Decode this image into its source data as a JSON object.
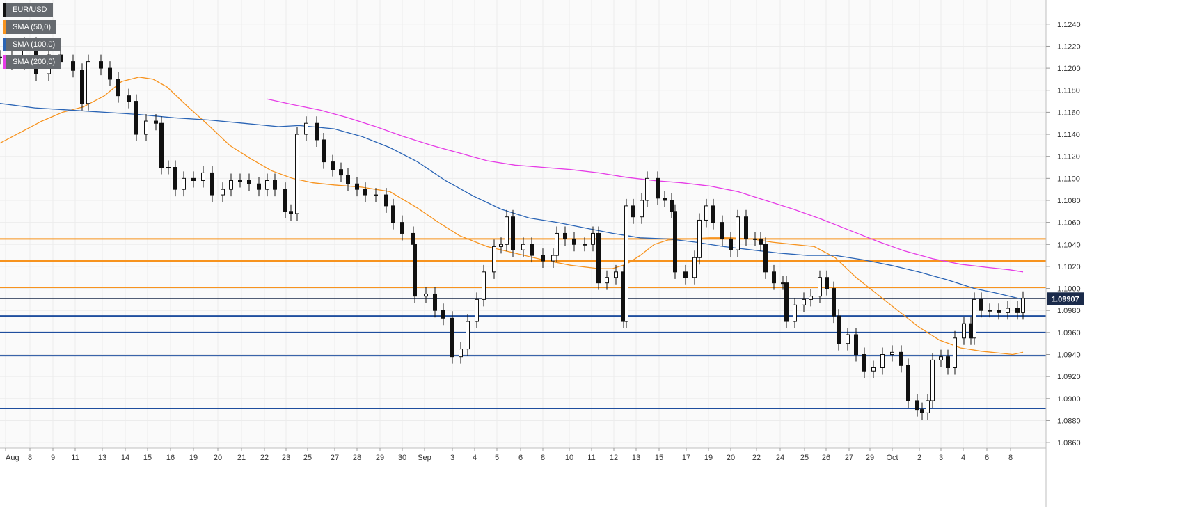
{
  "legend": {
    "items": [
      {
        "label": "EUR/USD",
        "color": "#111111"
      },
      {
        "label": "SMA (50,0)",
        "color": "#f7931e"
      },
      {
        "label": "SMA (100,0)",
        "color": "#2a64b5"
      },
      {
        "label": "SMA (200,0)",
        "color": "#e63ce6"
      }
    ]
  },
  "chart_data": {
    "type": "line",
    "title": "EUR/USD",
    "xlabel": "",
    "ylabel": "",
    "x_ticks": [
      "Aug",
      "8",
      "9",
      "11",
      "13",
      "14",
      "15",
      "16",
      "19",
      "20",
      "21",
      "22",
      "23",
      "25",
      "27",
      "28",
      "29",
      "30",
      "Sep",
      "3",
      "4",
      "5",
      "6",
      "8",
      "10",
      "11",
      "12",
      "13",
      "15",
      "17",
      "19",
      "20",
      "22",
      "24",
      "25",
      "26",
      "27",
      "29",
      "Oct",
      "2",
      "3",
      "4",
      "6",
      "8"
    ],
    "y_ticks": [
      "1.0860",
      "1.0880",
      "1.0900",
      "1.0920",
      "1.0940",
      "1.0960",
      "1.0980",
      "1.1000",
      "1.1020",
      "1.1040",
      "1.1060",
      "1.1080",
      "1.1100",
      "1.1120",
      "1.1140",
      "1.1160",
      "1.1180",
      "1.1200",
      "1.1220",
      "1.1240"
    ],
    "ylim": [
      1.0855,
      1.1262
    ],
    "current_price_label": "1.09907",
    "current_price": 1.09907,
    "grid": true,
    "legend_position": "top-left",
    "horizontal_levels": [
      {
        "value": 1.1045,
        "color": "#f7931e"
      },
      {
        "value": 1.1025,
        "color": "#f7931e"
      },
      {
        "value": 1.1001,
        "color": "#f7931e"
      },
      {
        "value": 1.0975,
        "color": "#1f4e9e"
      },
      {
        "value": 1.096,
        "color": "#1f4e9e"
      },
      {
        "value": 1.0939,
        "color": "#1f4e9e"
      },
      {
        "value": 1.0891,
        "color": "#1f4e9e"
      }
    ],
    "price_series": [
      [
        0,
        1.121
      ],
      [
        17,
        1.1205
      ],
      [
        35,
        1.1222
      ],
      [
        52,
        1.1195
      ],
      [
        70,
        1.1212
      ],
      [
        87,
        1.1206
      ],
      [
        105,
        1.1198
      ],
      [
        118,
        1.1168
      ],
      [
        127,
        1.1206
      ],
      [
        145,
        1.12
      ],
      [
        158,
        1.119
      ],
      [
        170,
        1.1175
      ],
      [
        185,
        1.117
      ],
      [
        196,
        1.114
      ],
      [
        210,
        1.1152
      ],
      [
        224,
        1.115
      ],
      [
        232,
        1.111
      ],
      [
        242,
        1.111
      ],
      [
        252,
        1.109
      ],
      [
        264,
        1.11
      ],
      [
        278,
        1.1098
      ],
      [
        292,
        1.1105
      ],
      [
        305,
        1.1085
      ],
      [
        320,
        1.109
      ],
      [
        332,
        1.1098
      ],
      [
        345,
        1.1098
      ],
      [
        358,
        1.1095
      ],
      [
        372,
        1.109
      ],
      [
        384,
        1.1098
      ],
      [
        395,
        1.109
      ],
      [
        410,
        1.107
      ],
      [
        418,
        1.1068
      ],
      [
        427,
        1.114
      ],
      [
        440,
        1.115
      ],
      [
        455,
        1.1135
      ],
      [
        465,
        1.1115
      ],
      [
        478,
        1.1108
      ],
      [
        490,
        1.1103
      ],
      [
        500,
        1.1095
      ],
      [
        513,
        1.109
      ],
      [
        525,
        1.1085
      ],
      [
        540,
        1.1085
      ],
      [
        555,
        1.1075
      ],
      [
        565,
        1.106
      ],
      [
        578,
        1.105
      ],
      [
        594,
        1.104
      ],
      [
        596,
        1.0993
      ],
      [
        612,
        1.0995
      ],
      [
        625,
        1.098
      ],
      [
        637,
        1.0973
      ],
      [
        650,
        1.0938
      ],
      [
        662,
        1.0945
      ],
      [
        672,
        1.097
      ],
      [
        685,
        1.099
      ],
      [
        695,
        1.1015
      ],
      [
        710,
        1.1038
      ],
      [
        720,
        1.104
      ],
      [
        728,
        1.1065
      ],
      [
        737,
        1.1035
      ],
      [
        752,
        1.104
      ],
      [
        764,
        1.103
      ],
      [
        780,
        1.1025
      ],
      [
        795,
        1.103
      ],
      [
        800,
        1.105
      ],
      [
        812,
        1.1045
      ],
      [
        825,
        1.104
      ],
      [
        840,
        1.104
      ],
      [
        852,
        1.105
      ],
      [
        860,
        1.1005
      ],
      [
        872,
        1.101
      ],
      [
        885,
        1.1015
      ],
      [
        896,
        1.097
      ],
      [
        900,
        1.1075
      ],
      [
        910,
        1.1065
      ],
      [
        922,
        1.108
      ],
      [
        930,
        1.11
      ],
      [
        945,
        1.1082
      ],
      [
        955,
        1.108
      ],
      [
        965,
        1.107
      ],
      [
        970,
        1.1015
      ],
      [
        985,
        1.101
      ],
      [
        998,
        1.1028
      ],
      [
        1005,
        1.1062
      ],
      [
        1015,
        1.1075
      ],
      [
        1025,
        1.106
      ],
      [
        1038,
        1.1045
      ],
      [
        1050,
        1.1035
      ],
      [
        1060,
        1.1065
      ],
      [
        1072,
        1.1045
      ],
      [
        1085,
        1.1045
      ],
      [
        1093,
        1.104
      ],
      [
        1100,
        1.1015
      ],
      [
        1112,
        1.1005
      ],
      [
        1125,
        1.1005
      ],
      [
        1130,
        1.097
      ],
      [
        1142,
        1.0985
      ],
      [
        1155,
        1.099
      ],
      [
        1165,
        1.0993
      ],
      [
        1178,
        1.101
      ],
      [
        1188,
        1.1
      ],
      [
        1198,
        1.0975
      ],
      [
        1205,
        1.095
      ],
      [
        1218,
        1.0958
      ],
      [
        1230,
        1.094
      ],
      [
        1242,
        1.0925
      ],
      [
        1255,
        1.0928
      ],
      [
        1268,
        1.094
      ],
      [
        1282,
        1.0942
      ],
      [
        1295,
        1.093
      ],
      [
        1305,
        1.0898
      ],
      [
        1318,
        1.089
      ],
      [
        1325,
        1.0887
      ],
      [
        1333,
        1.0898
      ],
      [
        1340,
        1.0935
      ],
      [
        1352,
        1.0938
      ],
      [
        1362,
        1.0928
      ],
      [
        1372,
        1.0955
      ],
      [
        1385,
        1.0968
      ],
      [
        1395,
        1.0955
      ],
      [
        1400,
        1.099
      ],
      [
        1410,
        1.098
      ],
      [
        1422,
        1.098
      ],
      [
        1435,
        1.0978
      ],
      [
        1448,
        1.0982
      ],
      [
        1462,
        1.0978
      ],
      [
        1470,
        1.0991
      ]
    ],
    "series": [
      {
        "name": "SMA (50,0)",
        "color": "#f7931e",
        "points": [
          [
            0,
            1.1132
          ],
          [
            30,
            1.1142
          ],
          [
            60,
            1.1152
          ],
          [
            90,
            1.116
          ],
          [
            120,
            1.1165
          ],
          [
            150,
            1.1175
          ],
          [
            175,
            1.1188
          ],
          [
            200,
            1.1192
          ],
          [
            220,
            1.119
          ],
          [
            240,
            1.1183
          ],
          [
            270,
            1.1165
          ],
          [
            300,
            1.1148
          ],
          [
            330,
            1.113
          ],
          [
            360,
            1.1118
          ],
          [
            390,
            1.1107
          ],
          [
            420,
            1.11
          ],
          [
            450,
            1.1096
          ],
          [
            480,
            1.1094
          ],
          [
            520,
            1.1092
          ],
          [
            560,
            1.1088
          ],
          [
            600,
            1.1073
          ],
          [
            630,
            1.106
          ],
          [
            660,
            1.1048
          ],
          [
            700,
            1.1038
          ],
          [
            740,
            1.1032
          ],
          [
            780,
            1.1026
          ],
          [
            820,
            1.1021
          ],
          [
            860,
            1.1018
          ],
          [
            880,
            1.1018
          ],
          [
            900,
            1.1022
          ],
          [
            920,
            1.103
          ],
          [
            940,
            1.104
          ],
          [
            960,
            1.1044
          ],
          [
            990,
            1.1045
          ],
          [
            1020,
            1.1046
          ],
          [
            1050,
            1.1046
          ],
          [
            1080,
            1.1045
          ],
          [
            1110,
            1.1042
          ],
          [
            1140,
            1.104
          ],
          [
            1170,
            1.1038
          ],
          [
            1200,
            1.1028
          ],
          [
            1230,
            1.101
          ],
          [
            1260,
            1.0995
          ],
          [
            1290,
            1.098
          ],
          [
            1320,
            1.0965
          ],
          [
            1350,
            1.0953
          ],
          [
            1380,
            1.0946
          ],
          [
            1410,
            1.0943
          ],
          [
            1440,
            1.0941
          ],
          [
            1455,
            1.094
          ],
          [
            1470,
            1.0942
          ]
        ]
      },
      {
        "name": "SMA (100,0)",
        "color": "#2a64b5",
        "points": [
          [
            0,
            1.1168
          ],
          [
            50,
            1.1164
          ],
          [
            100,
            1.1162
          ],
          [
            150,
            1.116
          ],
          [
            200,
            1.1158
          ],
          [
            250,
            1.1155
          ],
          [
            300,
            1.1153
          ],
          [
            350,
            1.115
          ],
          [
            400,
            1.1147
          ],
          [
            430,
            1.1148
          ],
          [
            480,
            1.1145
          ],
          [
            520,
            1.1138
          ],
          [
            560,
            1.1128
          ],
          [
            600,
            1.1115
          ],
          [
            640,
            1.1098
          ],
          [
            680,
            1.1084
          ],
          [
            720,
            1.1072
          ],
          [
            760,
            1.1064
          ],
          [
            800,
            1.106
          ],
          [
            840,
            1.1055
          ],
          [
            880,
            1.105
          ],
          [
            920,
            1.1046
          ],
          [
            960,
            1.1045
          ],
          [
            1000,
            1.1042
          ],
          [
            1040,
            1.1038
          ],
          [
            1080,
            1.1035
          ],
          [
            1120,
            1.1032
          ],
          [
            1160,
            1.103
          ],
          [
            1200,
            1.103
          ],
          [
            1240,
            1.1026
          ],
          [
            1280,
            1.1021
          ],
          [
            1320,
            1.1015
          ],
          [
            1360,
            1.1008
          ],
          [
            1400,
            1.1
          ],
          [
            1430,
            1.0996
          ],
          [
            1450,
            1.0993
          ],
          [
            1470,
            1.099
          ]
        ]
      },
      {
        "name": "SMA (200,0)",
        "color": "#e63ce6",
        "points": [
          [
            384,
            1.1172
          ],
          [
            420,
            1.1167
          ],
          [
            460,
            1.1162
          ],
          [
            500,
            1.1155
          ],
          [
            540,
            1.1147
          ],
          [
            580,
            1.1138
          ],
          [
            620,
            1.113
          ],
          [
            660,
            1.1123
          ],
          [
            700,
            1.1116
          ],
          [
            740,
            1.1112
          ],
          [
            780,
            1.111
          ],
          [
            820,
            1.1108
          ],
          [
            860,
            1.1105
          ],
          [
            900,
            1.1101
          ],
          [
            940,
            1.1098
          ],
          [
            980,
            1.1096
          ],
          [
            1020,
            1.1093
          ],
          [
            1060,
            1.1088
          ],
          [
            1100,
            1.108
          ],
          [
            1140,
            1.1072
          ],
          [
            1180,
            1.1063
          ],
          [
            1220,
            1.1053
          ],
          [
            1260,
            1.1043
          ],
          [
            1300,
            1.1034
          ],
          [
            1340,
            1.1027
          ],
          [
            1380,
            1.1022
          ],
          [
            1420,
            1.1019
          ],
          [
            1450,
            1.1017
          ],
          [
            1470,
            1.1015
          ]
        ]
      }
    ]
  }
}
